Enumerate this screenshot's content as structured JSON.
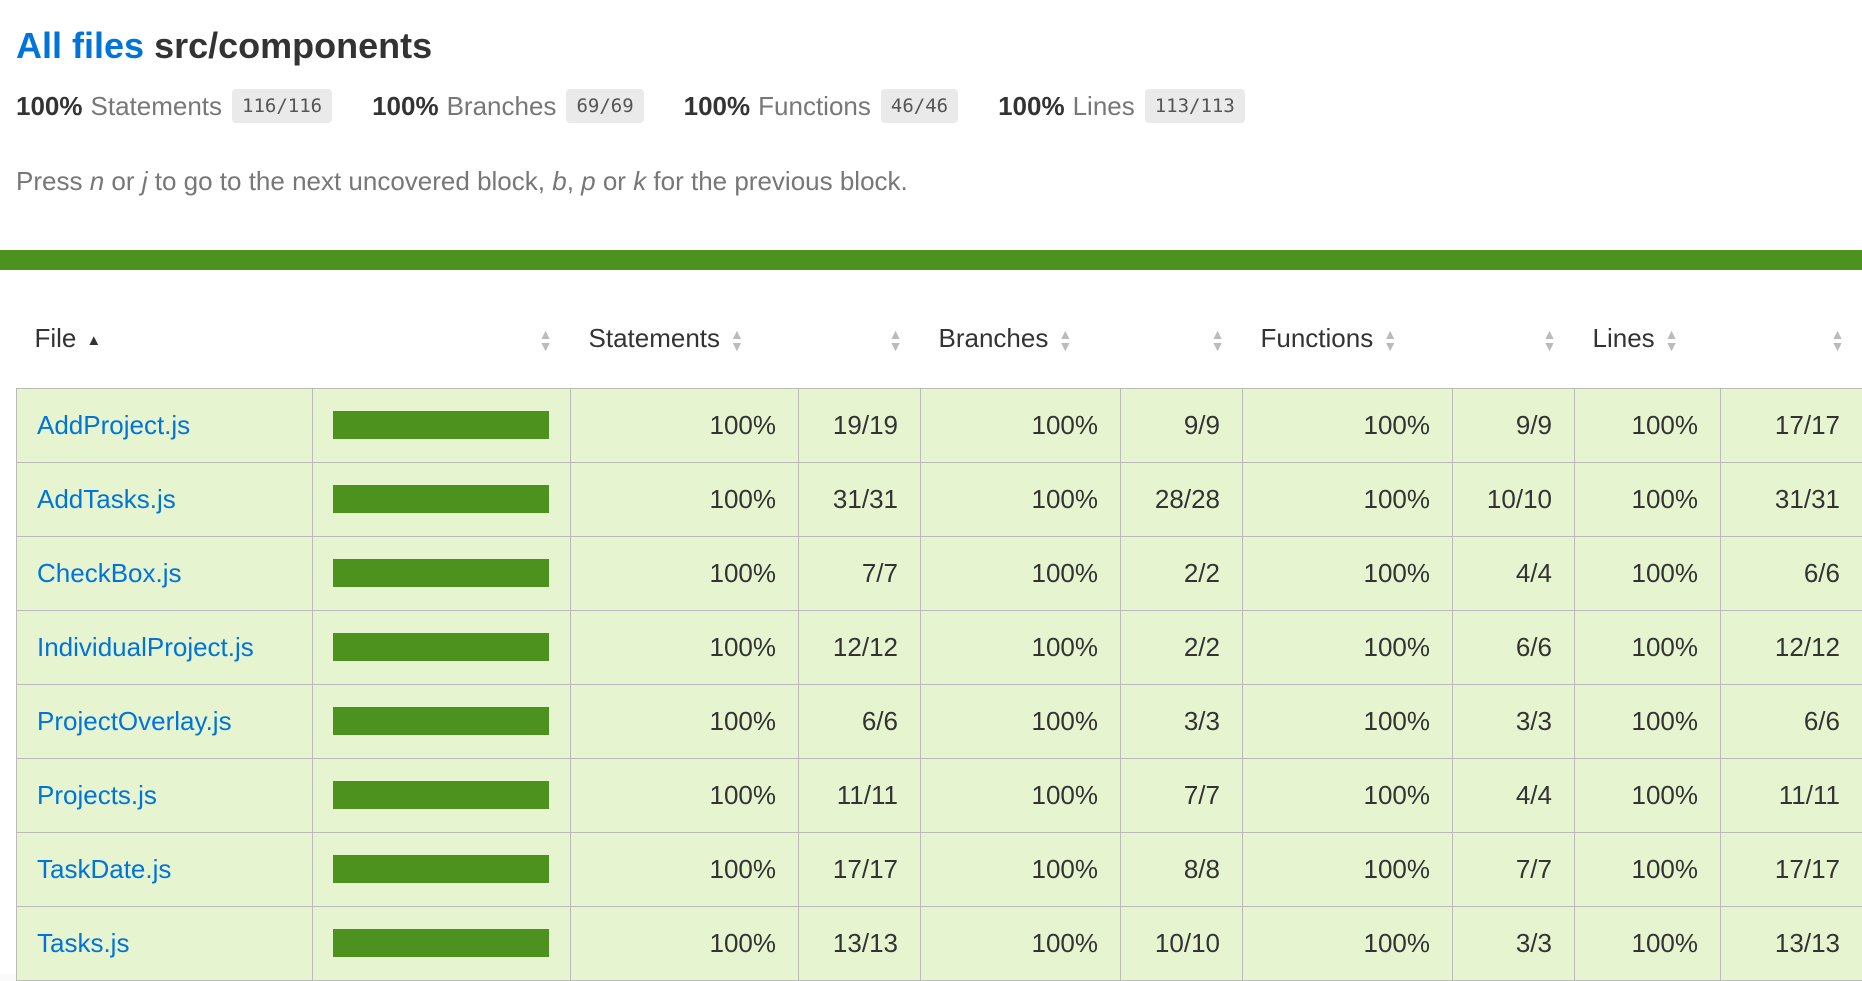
{
  "header": {
    "all_files_link": "All files",
    "path": "src/components"
  },
  "summary": [
    {
      "pct": "100%",
      "label": "Statements",
      "frac": "116/116"
    },
    {
      "pct": "100%",
      "label": "Branches",
      "frac": "69/69"
    },
    {
      "pct": "100%",
      "label": "Functions",
      "frac": "46/46"
    },
    {
      "pct": "100%",
      "label": "Lines",
      "frac": "113/113"
    }
  ],
  "hint": {
    "p1": "Press ",
    "k_n": "n",
    "p2": " or ",
    "k_j": "j",
    "p3": " to go to the next uncovered block, ",
    "k_b": "b",
    "p4": ", ",
    "k_p": "p",
    "p5": " or ",
    "k_k": "k",
    "p6": " for the previous block."
  },
  "colors": {
    "status_high": "#4d921f",
    "row_high": "#e6f5d0",
    "link": "#0074d9"
  },
  "table": {
    "columns": [
      "File",
      "",
      "Statements",
      "",
      "Branches",
      "",
      "Functions",
      "",
      "Lines",
      ""
    ],
    "rows": [
      {
        "file": "AddProject.js",
        "coverage": 1.0,
        "st_pct": "100%",
        "st": "19/19",
        "br_pct": "100%",
        "br": "9/9",
        "fn_pct": "100%",
        "fn": "9/9",
        "ln_pct": "100%",
        "ln": "17/17"
      },
      {
        "file": "AddTasks.js",
        "coverage": 1.0,
        "st_pct": "100%",
        "st": "31/31",
        "br_pct": "100%",
        "br": "28/28",
        "fn_pct": "100%",
        "fn": "10/10",
        "ln_pct": "100%",
        "ln": "31/31"
      },
      {
        "file": "CheckBox.js",
        "coverage": 1.0,
        "st_pct": "100%",
        "st": "7/7",
        "br_pct": "100%",
        "br": "2/2",
        "fn_pct": "100%",
        "fn": "4/4",
        "ln_pct": "100%",
        "ln": "6/6"
      },
      {
        "file": "IndividualProject.js",
        "coverage": 1.0,
        "st_pct": "100%",
        "st": "12/12",
        "br_pct": "100%",
        "br": "2/2",
        "fn_pct": "100%",
        "fn": "6/6",
        "ln_pct": "100%",
        "ln": "12/12"
      },
      {
        "file": "ProjectOverlay.js",
        "coverage": 1.0,
        "st_pct": "100%",
        "st": "6/6",
        "br_pct": "100%",
        "br": "3/3",
        "fn_pct": "100%",
        "fn": "3/3",
        "ln_pct": "100%",
        "ln": "6/6"
      },
      {
        "file": "Projects.js",
        "coverage": 1.0,
        "st_pct": "100%",
        "st": "11/11",
        "br_pct": "100%",
        "br": "7/7",
        "fn_pct": "100%",
        "fn": "4/4",
        "ln_pct": "100%",
        "ln": "11/11"
      },
      {
        "file": "TaskDate.js",
        "coverage": 1.0,
        "st_pct": "100%",
        "st": "17/17",
        "br_pct": "100%",
        "br": "8/8",
        "fn_pct": "100%",
        "fn": "7/7",
        "ln_pct": "100%",
        "ln": "17/17"
      },
      {
        "file": "Tasks.js",
        "coverage": 1.0,
        "st_pct": "100%",
        "st": "13/13",
        "br_pct": "100%",
        "br": "10/10",
        "fn_pct": "100%",
        "fn": "3/3",
        "ln_pct": "100%",
        "ln": "13/13"
      }
    ]
  }
}
